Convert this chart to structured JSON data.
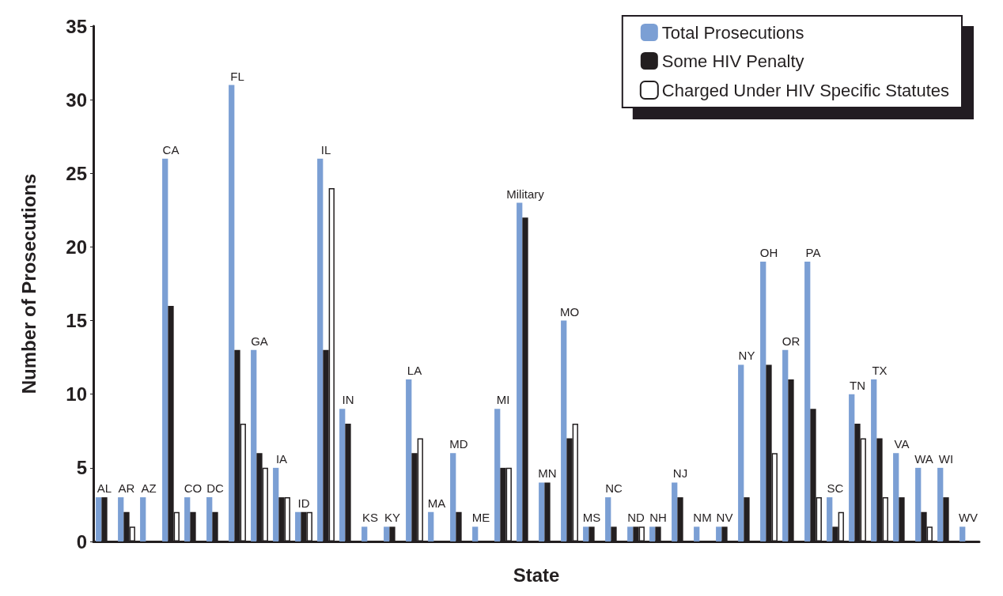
{
  "chart_data": {
    "type": "bar",
    "xlabel": "State",
    "ylabel": "Number of Prosecutions",
    "categories": [
      "AL",
      "AR",
      "AZ",
      "CA",
      "CO",
      "DC",
      "FL",
      "GA",
      "IA",
      "ID",
      "IL",
      "IN",
      "KS",
      "KY",
      "LA",
      "MA",
      "MD",
      "ME",
      "MI",
      "Military",
      "MN",
      "MO",
      "MS",
      "NC",
      "ND",
      "NH",
      "NJ",
      "NM",
      "NV",
      "NY",
      "OH",
      "OR",
      "PA",
      "SC",
      "TN",
      "TX",
      "VA",
      "WA",
      "WI",
      "WV"
    ],
    "series": [
      {
        "name": "Total Prosecutions",
        "color": "#7b9fd4",
        "values": [
          3,
          3,
          3,
          26,
          3,
          3,
          31,
          13,
          5,
          2,
          26,
          9,
          1,
          1,
          11,
          2,
          6,
          1,
          9,
          23,
          4,
          15,
          1,
          3,
          1,
          1,
          4,
          1,
          1,
          12,
          19,
          13,
          19,
          3,
          10,
          11,
          6,
          5,
          5,
          1
        ]
      },
      {
        "name": "Some HIV Penalty",
        "color": "#231f20",
        "values": [
          3,
          2,
          null,
          16,
          2,
          2,
          13,
          6,
          3,
          2,
          13,
          8,
          null,
          1,
          6,
          null,
          2,
          null,
          5,
          22,
          4,
          7,
          1,
          1,
          1,
          1,
          3,
          null,
          1,
          3,
          12,
          11,
          9,
          1,
          8,
          7,
          3,
          2,
          3,
          null
        ]
      },
      {
        "name": "Charged Under HIV Specific Statutes",
        "color": "#ffffff",
        "values": [
          null,
          1,
          null,
          2,
          null,
          null,
          8,
          5,
          3,
          2,
          24,
          null,
          null,
          null,
          7,
          null,
          null,
          null,
          5,
          null,
          null,
          8,
          null,
          null,
          1,
          null,
          null,
          null,
          null,
          null,
          6,
          null,
          3,
          2,
          7,
          3,
          null,
          1,
          null,
          null
        ]
      }
    ],
    "ylim": [
      0,
      35
    ],
    "yticks": [
      0,
      5,
      10,
      15,
      20,
      25,
      30,
      35
    ],
    "grid": false,
    "legend": "top right"
  }
}
